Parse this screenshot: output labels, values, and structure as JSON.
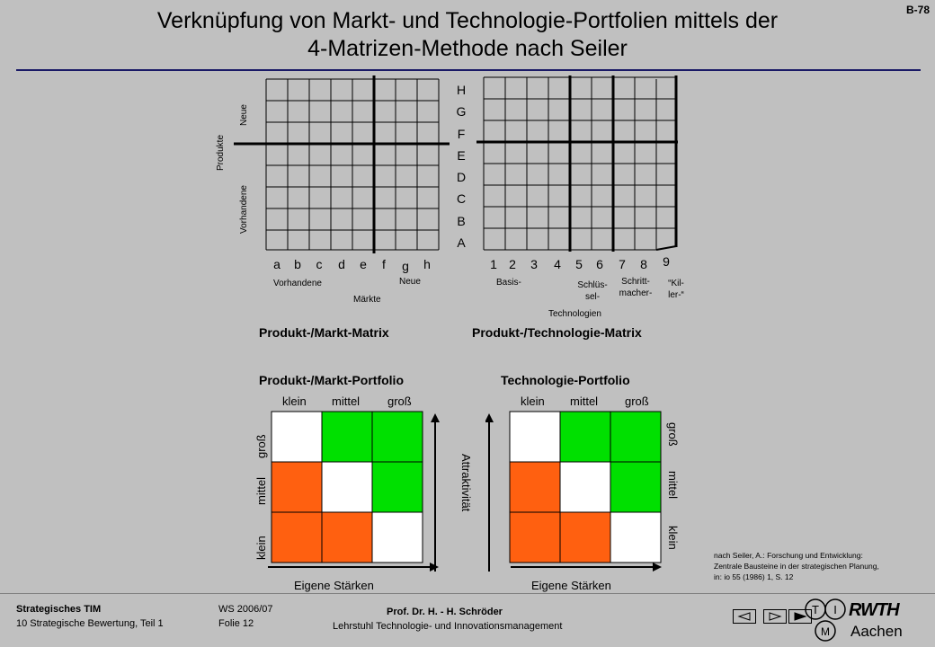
{
  "page_number": "B-78",
  "title_line1": "Verknüpfung von Markt- und Technologie-Portfolien mittels der",
  "title_line2": "4-Matrizen-Methode nach Seiler",
  "pm_matrix": {
    "x_letters": [
      "a",
      "b",
      "c",
      "d",
      "e",
      "f",
      "g",
      "h"
    ],
    "y_axis_title": "Produkte",
    "y_neue": "Neue",
    "y_vorhandene": "Vorhandene",
    "x_vorhandene": "Vorhandene",
    "x_maerkte": "Märkte",
    "x_neue": "Neue",
    "caption": "Produkt-/Markt-Matrix"
  },
  "shared_letters": [
    "H",
    "G",
    "F",
    "E",
    "D",
    "C",
    "B",
    "A"
  ],
  "pt_matrix": {
    "x_numbers": [
      "1",
      "2",
      "3",
      "4",
      "5",
      "6",
      "7",
      "8",
      "9"
    ],
    "basis": "Basis-",
    "schluessel_1": "Schlüs-",
    "schluessel_2": "sel-",
    "schritt_1": "Schritt-",
    "schritt_2": "macher-",
    "killer_1": "“Kil-",
    "killer_2": "ler-“",
    "technologien": "Technologien",
    "caption": "Produkt-/Technologie-Matrix"
  },
  "pm_portfolio": {
    "title": "Produkt-/Markt-Portfolio",
    "top_labels": [
      "klein",
      "mittel",
      "groß"
    ],
    "side_labels": [
      "groß",
      "mittel",
      "klein"
    ],
    "x_axis": "Eigene Stärken"
  },
  "tech_portfolio": {
    "title": "Technologie-Portfolio",
    "top_labels": [
      "klein",
      "mittel",
      "groß"
    ],
    "side_labels": [
      "groß",
      "mittel",
      "klein"
    ],
    "x_axis": "Eigene Stärken"
  },
  "y_axis_shared": "Attraktivität",
  "grid_colors": {
    "rows": [
      [
        "white",
        "green",
        "green"
      ],
      [
        "orange",
        "white",
        "green"
      ],
      [
        "orange",
        "orange",
        "white"
      ]
    ],
    "white": "#ffffff",
    "green": "#00e000",
    "orange": "#ff6010"
  },
  "source": {
    "line1": "nach Seiler, A.: Forschung und Entwicklung:",
    "line2": "Zentrale Bausteine in der strategischen Planung,",
    "line3": "in: io 55 (1986) 1, S. 12"
  },
  "footer": {
    "course": "Strategisches TIM",
    "chapter": "10  Strategische Bewertung,  Teil 1",
    "semester": "WS 2006/07",
    "folie": "Folie 12",
    "prof": "Prof. Dr. H. - H. Schröder",
    "chair": "Lehrstuhl Technologie- und Innovationsmanagement",
    "logo_t": "T",
    "logo_i": "I",
    "logo_m": "M",
    "logo_rwth": "RWTH",
    "logo_aachen": "Aachen"
  }
}
